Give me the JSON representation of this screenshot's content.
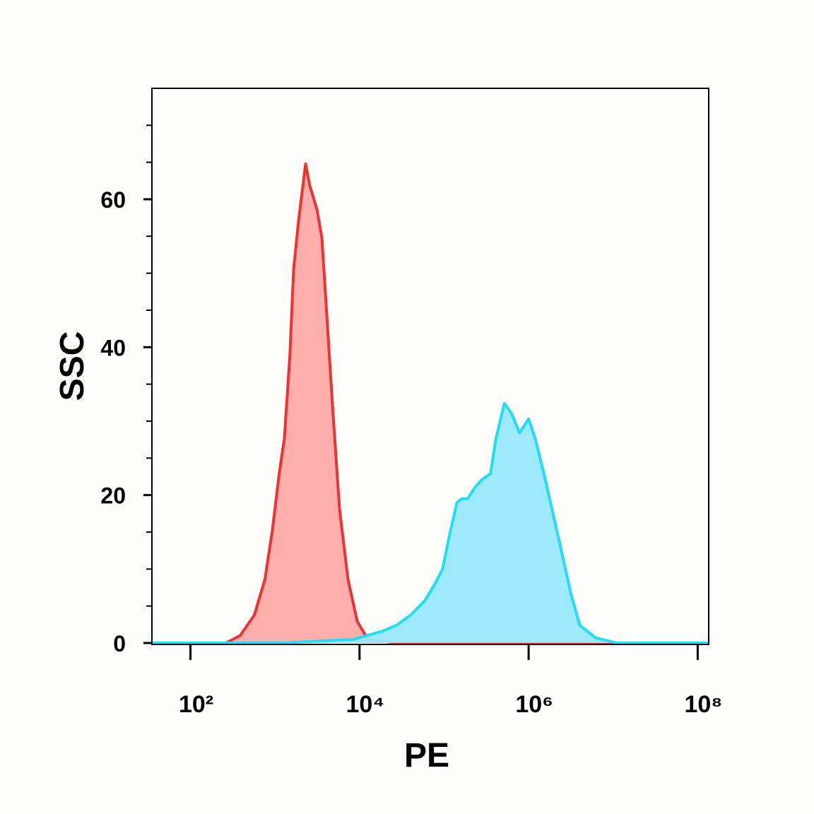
{
  "chart_data": {
    "type": "area",
    "xlabel": "PE",
    "ylabel": "SSC",
    "xscale": "log",
    "xlim": [
      35,
      135000000
    ],
    "ylim": [
      0,
      75
    ],
    "xticks": [
      {
        "value": 100,
        "label": "10²"
      },
      {
        "value": 10000,
        "label": "10⁴"
      },
      {
        "value": 1000000,
        "label": "10⁶"
      },
      {
        "value": 100000000,
        "label": "10⁸"
      }
    ],
    "yticks": [
      0,
      20,
      40,
      60
    ],
    "yminorticks": [
      5,
      10,
      15,
      25,
      30,
      35,
      45,
      50,
      55,
      65,
      70
    ],
    "series": [
      {
        "color": "#ee3333",
        "fill": "#ffaaaa",
        "x": [
          35,
          263,
          387,
          570,
          760,
          930,
          1120,
          1290,
          1500,
          1660,
          1900,
          2300,
          2570,
          3140,
          3580,
          4100,
          4800,
          5800,
          7300,
          9400,
          12600,
          27400,
          135000000
        ],
        "values": [
          0,
          0,
          1,
          3.8,
          8.6,
          15.2,
          22.9,
          27.6,
          39,
          50.5,
          57.1,
          64.8,
          61.9,
          58.6,
          54.8,
          44.3,
          31.9,
          18.1,
          8.6,
          2.9,
          0.5,
          0,
          0
        ]
      },
      {
        "color": "#22ddf5",
        "fill": "#99e8fb",
        "x": [
          35,
          1200,
          8500,
          18600,
          27400,
          40500,
          59000,
          79000,
          96000,
          117000,
          142000,
          162000,
          190000,
          230000,
          280000,
          354000,
          410000,
          516000,
          630000,
          780000,
          1000000,
          1200000,
          1590000,
          2350000,
          3160000,
          4030000,
          6200000,
          11000000,
          135000000
        ],
        "values": [
          0,
          0,
          0.5,
          1.6,
          2.4,
          3.8,
          5.7,
          8.1,
          10,
          14.8,
          19,
          19.5,
          19.5,
          21,
          22.1,
          22.9,
          27.6,
          32.4,
          31,
          28.4,
          30.3,
          27.6,
          21.9,
          13.3,
          6.7,
          2.4,
          0.7,
          0,
          0
        ]
      }
    ]
  }
}
